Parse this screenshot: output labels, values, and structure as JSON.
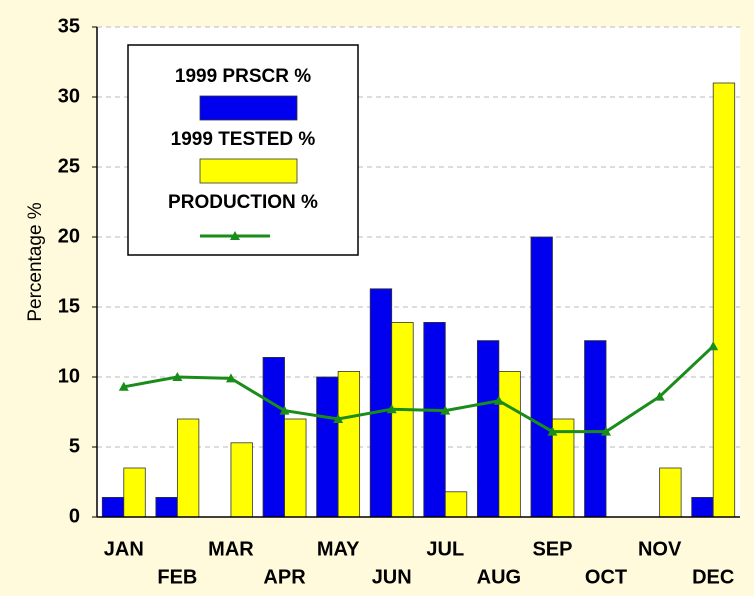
{
  "chart_data": {
    "type": "bar",
    "ylabel": "Percentage %",
    "categories": [
      "JAN",
      "FEB",
      "MAR",
      "APR",
      "MAY",
      "JUN",
      "JUL",
      "AUG",
      "SEP",
      "OCT",
      "NOV",
      "DEC"
    ],
    "series": [
      {
        "name": "1999 PRSCR %",
        "color": "#0000ee",
        "type": "bar",
        "values": [
          1.4,
          1.4,
          0,
          11.4,
          10,
          16.3,
          13.9,
          12.6,
          20,
          12.6,
          0,
          1.4
        ]
      },
      {
        "name": "1999 TESTED %",
        "color": "#ffff00",
        "type": "bar",
        "values": [
          3.5,
          7,
          5.3,
          7,
          10.4,
          13.9,
          1.8,
          10.4,
          7,
          0,
          3.5,
          31
        ]
      },
      {
        "name": "PRODUCTION %",
        "color": "#1a8c1a",
        "type": "line",
        "values": [
          9.3,
          10,
          9.9,
          7.6,
          7,
          7.7,
          7.6,
          8.3,
          6.1,
          6.1,
          8.6,
          12.2
        ]
      }
    ],
    "ylim": [
      0,
      35
    ],
    "yticks": [
      0,
      5,
      10,
      15,
      20,
      25,
      30,
      35
    ],
    "grid": true,
    "legend": "upper left"
  }
}
